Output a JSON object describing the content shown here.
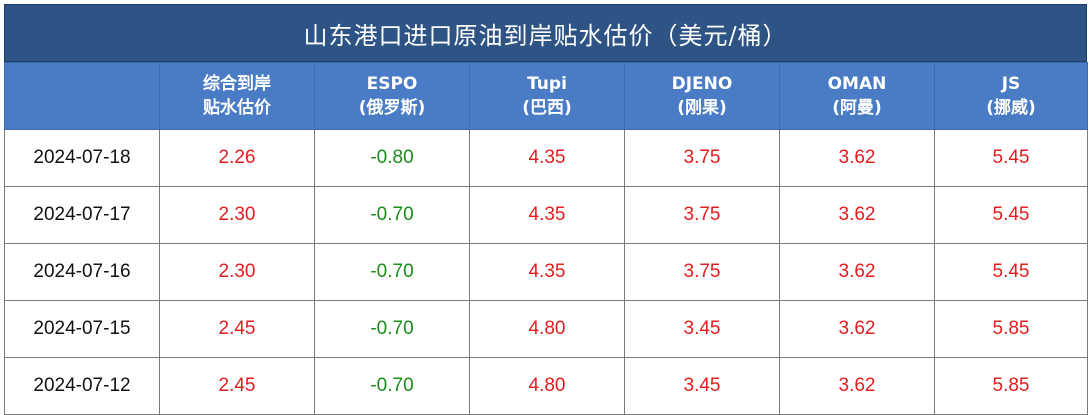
{
  "title": "山东港口进口原油到岸贴水估价（美元/桶）",
  "columns": [
    {
      "line1": "",
      "line2": ""
    },
    {
      "line1": "综合到岸",
      "line2": "贴水估价"
    },
    {
      "line1": "ESPO",
      "line2": "(俄罗斯)"
    },
    {
      "line1": "Tupi",
      "line2": "(巴西)"
    },
    {
      "line1": "DJENO",
      "line2": "(刚果)"
    },
    {
      "line1": "OMAN",
      "line2": "(阿曼)"
    },
    {
      "line1": "JS",
      "line2": "(挪威)"
    }
  ],
  "rows": [
    {
      "date": "2024-07-18",
      "v": [
        "2.26",
        "-0.80",
        "4.35",
        "3.75",
        "3.62",
        "5.45"
      ]
    },
    {
      "date": "2024-07-17",
      "v": [
        "2.30",
        "-0.70",
        "4.35",
        "3.75",
        "3.62",
        "5.45"
      ]
    },
    {
      "date": "2024-07-16",
      "v": [
        "2.30",
        "-0.70",
        "4.35",
        "3.75",
        "3.62",
        "5.45"
      ]
    },
    {
      "date": "2024-07-15",
      "v": [
        "2.45",
        "-0.70",
        "4.80",
        "3.45",
        "3.62",
        "5.85"
      ]
    },
    {
      "date": "2024-07-12",
      "v": [
        "2.45",
        "-0.70",
        "4.80",
        "3.45",
        "3.62",
        "5.85"
      ]
    }
  ],
  "colors": {
    "header_bg": "#4a7cc5",
    "title_bg": "#2e5486",
    "positive": "#e31d1d",
    "negative": "#1a8c1a"
  }
}
